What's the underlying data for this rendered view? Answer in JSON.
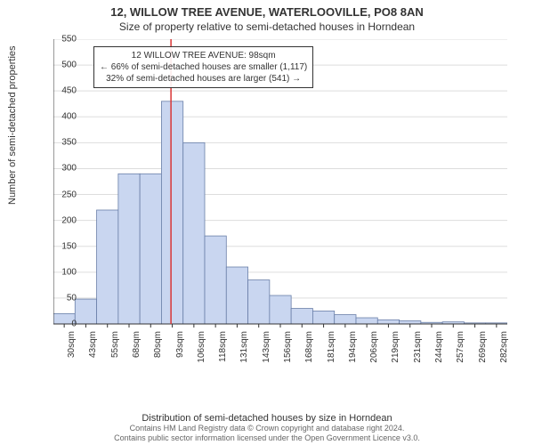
{
  "title_main": "12, WILLOW TREE AVENUE, WATERLOOVILLE, PO8 8AN",
  "title_sub": "Size of property relative to semi-detached houses in Horndean",
  "y_axis_label": "Number of semi-detached properties",
  "x_axis_label": "Distribution of semi-detached houses by size in Horndean",
  "footer_line1": "Contains HM Land Registry data © Crown copyright and database right 2024.",
  "footer_line2": "Contains public sector information licensed under the Open Government Licence v3.0.",
  "chart": {
    "type": "histogram",
    "background_color": "#ffffff",
    "bar_fill": "#c9d6f0",
    "bar_stroke": "#6a7fa8",
    "grid_color": "#dddddd",
    "axis_color": "#333333",
    "marker_line_color": "#d93636",
    "marker_x": 98,
    "ylim": [
      0,
      550
    ],
    "ytick_step": 50,
    "x_categories": [
      "30sqm",
      "43sqm",
      "55sqm",
      "68sqm",
      "80sqm",
      "93sqm",
      "106sqm",
      "118sqm",
      "131sqm",
      "143sqm",
      "156sqm",
      "168sqm",
      "181sqm",
      "194sqm",
      "206sqm",
      "219sqm",
      "231sqm",
      "244sqm",
      "257sqm",
      "269sqm",
      "282sqm"
    ],
    "x_bin_start": 30,
    "x_bin_step": 12.5,
    "values": [
      20,
      48,
      220,
      290,
      290,
      430,
      350,
      170,
      110,
      85,
      55,
      30,
      25,
      18,
      12,
      8,
      6,
      3,
      4,
      2,
      2
    ],
    "title_fontsize": 13,
    "sub_fontsize": 12,
    "label_fontsize": 11,
    "tick_fontsize": 10
  },
  "annotation": {
    "line1": "12 WILLOW TREE AVENUE: 98sqm",
    "line2": "← 66% of semi-detached houses are smaller (1,117)",
    "line3": "32% of semi-detached houses are larger (541) →",
    "box_border": "#333333"
  }
}
